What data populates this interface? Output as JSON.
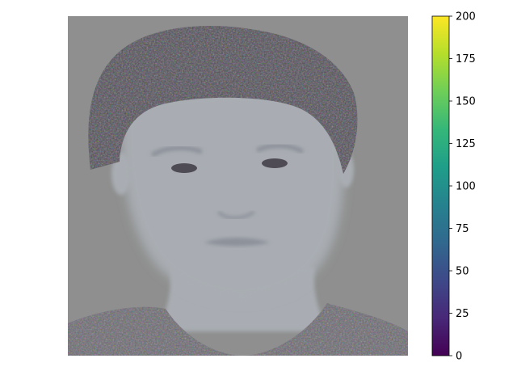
{
  "chart_data": {
    "type": "heatmap",
    "image": {
      "subject": "face-portrait",
      "background_color": "#8e8f8e",
      "skin_color": "#a9adb3",
      "shadow_color": "#8d919a",
      "hair_color": "#4f4b55",
      "clothing_color": "#6b6870"
    },
    "colorbar": {
      "colormap": "viridis",
      "vmin": 0,
      "vmax": 200,
      "ticks": [
        0,
        25,
        50,
        75,
        100,
        125,
        150,
        175,
        200
      ],
      "tick_labels": [
        "0",
        "25",
        "50",
        "75",
        "100",
        "125",
        "150",
        "175",
        "200"
      ],
      "stops": [
        "#440154",
        "#482878",
        "#3e4989",
        "#31688e",
        "#26828e",
        "#1f9e89",
        "#35b779",
        "#6ece58",
        "#b5de2b",
        "#fde725"
      ]
    },
    "axes": {
      "visible": false
    }
  }
}
